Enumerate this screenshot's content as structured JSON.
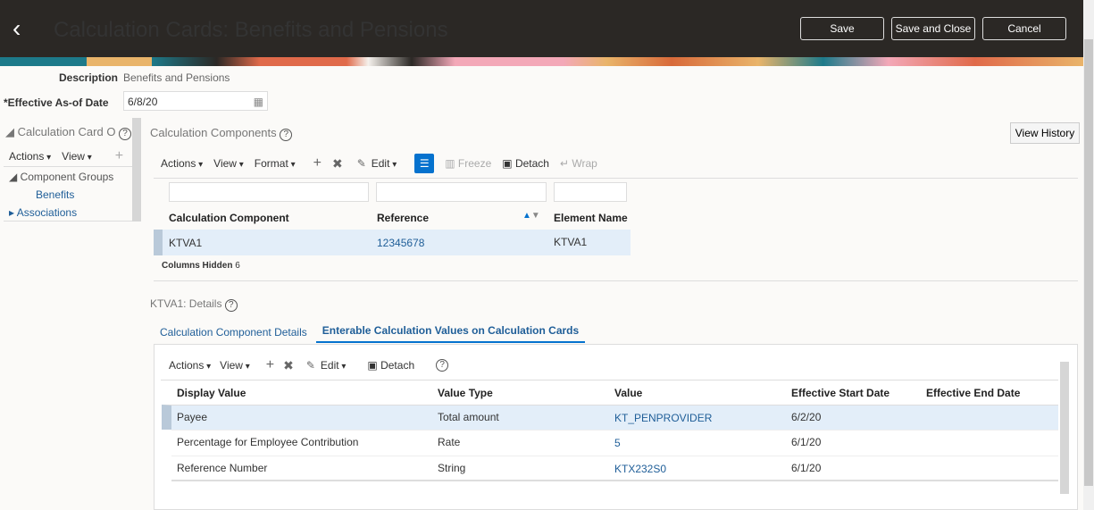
{
  "header": {
    "title": "Calculation Cards: Benefits and Pensions",
    "save": "Save",
    "save_close": "Save and Close",
    "cancel": "Cancel"
  },
  "form": {
    "description_label": "Description",
    "description_value": "Benefits and Pensions",
    "date_label": "*Effective As-of Date",
    "date_value": "6/8/20"
  },
  "left_panel": {
    "title": "Calculation Card O",
    "actions": "Actions",
    "view": "View",
    "tree": [
      {
        "label": "Component Groups"
      },
      {
        "label": "Benefits"
      },
      {
        "label": "Associations"
      }
    ]
  },
  "components": {
    "title": "Calculation Components",
    "view_history": "View History",
    "toolbar": {
      "actions": "Actions",
      "view": "View",
      "format": "Format",
      "edit": "Edit",
      "freeze": "Freeze",
      "detach": "Detach",
      "wrap": "Wrap"
    },
    "columns": [
      "Calculation Component",
      "Reference",
      "Element Name"
    ],
    "rows": [
      [
        "KTVA1",
        "12345678",
        "KTVA1"
      ]
    ],
    "columns_hidden_label": "Columns Hidden",
    "columns_hidden_value": "6"
  },
  "details": {
    "title": "KTVA1: Details",
    "tabs": [
      "Calculation Component Details",
      "Enterable Calculation Values on Calculation Cards"
    ],
    "active_tab": 1,
    "toolbar": {
      "actions": "Actions",
      "view": "View",
      "edit": "Edit",
      "detach": "Detach"
    },
    "columns": [
      "Display Value",
      "Value Type",
      "Value",
      "Effective Start Date",
      "Effective End Date"
    ],
    "rows": [
      [
        "Payee",
        "Total amount",
        "KT_PENPROVIDER",
        "6/2/20",
        ""
      ],
      [
        "Percentage for Employee Contribution",
        "Rate",
        "5",
        "6/1/20",
        ""
      ],
      [
        "Reference Number",
        "String",
        "KTX232S0",
        "6/1/20",
        ""
      ]
    ]
  },
  "colors": {
    "header": "#2b2825",
    "link": "#1f5e98",
    "selected_row": "#e3eef9",
    "accent": "#0572ce"
  }
}
